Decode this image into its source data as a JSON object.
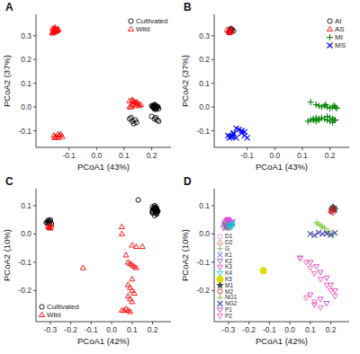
{
  "chart_data": [
    {
      "type": "scatter",
      "title": "A",
      "xlabel": "PCoA1 (43%)",
      "ylabel": "PCoA2 (37%)",
      "xlim": [
        -0.22,
        0.27
      ],
      "ylim": [
        -0.17,
        0.39
      ],
      "xticks": [
        -0.1,
        {
          "value": 0.0,
          "label": "0.0"
        },
        0.1,
        0.2
      ],
      "yticks": [
        -0.1,
        {
          "value": 0.0,
          "label": "0.0"
        },
        0.1,
        0.2,
        0.3
      ],
      "grid": false,
      "legend": "upper right",
      "series": [
        {
          "name": "Cultivated",
          "color": "black",
          "marker": "circle-open",
          "x": [
            0.2,
            0.21,
            0.215,
            0.205,
            0.21,
            0.22,
            0.208,
            0.215,
            0.212,
            0.218,
            0.205,
            0.21,
            0.203,
            0.207,
            0.213,
            0.218,
            0.222,
            0.225,
            0.2,
            0.21,
            0.215,
            0.22,
            0.225,
            0.13,
            0.14,
            0.145,
            0.135,
            0.12,
            0.125
          ],
          "values": [
            0.005,
            0.01,
            -0.01,
            0.0,
            0.005,
            0.0,
            -0.005,
            0.0,
            0.008,
            -0.005,
            0.003,
            -0.008,
            0.002,
            -0.003,
            0.006,
            -0.002,
            0.001,
            -0.007,
            -0.04,
            -0.05,
            -0.045,
            -0.055,
            -0.06,
            -0.06,
            -0.055,
            -0.065,
            -0.07,
            -0.05,
            -0.045
          ]
        },
        {
          "name": "Wild",
          "color": "red",
          "marker": "triangle-up-open",
          "x": [
            -0.15,
            -0.155,
            -0.16,
            -0.14,
            -0.15,
            -0.16,
            -0.155,
            -0.145,
            -0.14,
            -0.15,
            -0.155,
            -0.16,
            -0.145,
            -0.15,
            -0.148,
            -0.152,
            -0.158,
            -0.142,
            -0.155,
            -0.14,
            -0.148,
            -0.152,
            -0.13,
            -0.135,
            -0.14,
            -0.125,
            0.13,
            0.14,
            0.135,
            0.15,
            0.12,
            0.13,
            0.145,
            0.155,
            0.16,
            0.15,
            0.14,
            0.125,
            0.12,
            0.13
          ],
          "values": [
            0.325,
            0.33,
            0.315,
            0.325,
            0.32,
            0.33,
            0.318,
            0.322,
            0.328,
            0.315,
            0.325,
            0.31,
            0.32,
            0.335,
            0.32,
            0.33,
            0.315,
            0.325,
            -0.12,
            -0.115,
            -0.125,
            -0.13,
            -0.115,
            -0.12,
            -0.13,
            -0.125,
            0.01,
            0.005,
            0.02,
            0.015,
            0.0,
            0.025,
            0.02,
            0.005,
            0.01,
            0.015,
            0.02,
            0.0,
            0.025,
            0.03
          ]
        }
      ]
    },
    {
      "type": "scatter",
      "title": "B",
      "xlabel": "PCoA1 (43%)",
      "ylabel": "PCoA2 (37%)",
      "xlim": [
        -0.22,
        0.27
      ],
      "ylim": [
        -0.17,
        0.39
      ],
      "xticks": [
        -0.1,
        {
          "value": 0.0,
          "label": "0.0"
        },
        0.1,
        0.2
      ],
      "yticks": [
        -0.1,
        {
          "value": 0.0,
          "label": "0.0"
        },
        0.1,
        0.2,
        0.3
      ],
      "grid": false,
      "legend": "upper right",
      "series": [
        {
          "name": "AI",
          "color": "black",
          "marker": "circle-open",
          "x": [
            -0.155,
            -0.16,
            -0.165,
            -0.15,
            -0.158,
            -0.162
          ],
          "values": [
            0.325,
            0.33,
            0.315,
            0.32,
            0.328,
            0.322
          ]
        },
        {
          "name": "AS",
          "color": "red",
          "marker": "triangle-up-open",
          "x": [
            -0.168,
            -0.158,
            -0.163,
            -0.173,
            -0.16,
            -0.165
          ],
          "values": [
            0.32,
            0.33,
            0.315,
            0.325,
            0.318,
            0.312
          ]
        },
        {
          "name": "MI",
          "color": "green",
          "marker": "plus",
          "x": [
            0.13,
            0.15,
            0.16,
            0.17,
            0.18,
            0.185,
            0.19,
            0.2,
            0.21,
            0.215,
            0.22,
            0.225,
            0.19,
            0.2,
            0.21,
            0.215,
            0.14,
            0.15,
            0.16,
            0.17,
            0.18,
            0.19,
            0.2,
            0.21,
            0.22,
            0.12,
            0.13,
            0.14,
            0.15,
            0.16
          ],
          "values": [
            0.02,
            0.01,
            0.005,
            0.0,
            0.005,
            0.01,
            0.0,
            -0.005,
            0.0,
            0.005,
            0.0,
            -0.005,
            -0.04,
            -0.045,
            -0.05,
            -0.055,
            -0.055,
            -0.06,
            -0.055,
            -0.045,
            -0.05,
            -0.055,
            -0.06,
            -0.065,
            -0.055,
            -0.06,
            -0.055,
            -0.05,
            -0.045,
            -0.05
          ]
        },
        {
          "name": "MS",
          "color": "blue",
          "marker": "x",
          "x": [
            -0.14,
            -0.13,
            -0.12,
            -0.11,
            -0.15,
            -0.155,
            -0.16,
            -0.165,
            -0.15,
            -0.14,
            -0.155,
            -0.17,
            -0.12,
            -0.11,
            -0.1
          ],
          "values": [
            -0.09,
            -0.095,
            -0.1,
            -0.105,
            -0.115,
            -0.12,
            -0.125,
            -0.13,
            -0.11,
            -0.13,
            -0.125,
            -0.12,
            -0.11,
            -0.12,
            -0.13
          ]
        }
      ]
    },
    {
      "type": "scatter",
      "title": "C",
      "xlabel": "PCoA1 (42%)",
      "ylabel": "PCoA2 (10%)",
      "xlim": [
        -0.37,
        0.29
      ],
      "ylim": [
        -0.31,
        0.16
      ],
      "xticks": [
        -0.3,
        -0.2,
        -0.1,
        {
          "value": 0.0,
          "label": "0.0"
        },
        0.1,
        0.2
      ],
      "yticks": [
        -0.2,
        -0.1,
        {
          "value": 0.0,
          "label": "0.0"
        },
        0.1
      ],
      "grid": false,
      "legend": "lower left",
      "series": [
        {
          "name": "Cultivated",
          "color": "black",
          "marker": "circle-open",
          "x": [
            -0.32,
            -0.31,
            -0.305,
            -0.315,
            -0.3,
            -0.31,
            -0.305,
            -0.295,
            -0.3,
            -0.31,
            0.2,
            0.21,
            0.215,
            0.22,
            0.205,
            0.215,
            0.22,
            0.2,
            0.21,
            0.215,
            0.225,
            0.2,
            0.13,
            0.22,
            0.215,
            0.21,
            0.2,
            0.21,
            0.215,
            0.22,
            0.225,
            0.21,
            0.2,
            0.215,
            0.22
          ],
          "values": [
            0.04,
            0.045,
            0.035,
            0.04,
            0.05,
            0.038,
            0.042,
            0.036,
            0.044,
            0.048,
            0.08,
            0.085,
            0.09,
            0.085,
            0.09,
            0.095,
            0.08,
            0.085,
            0.09,
            0.095,
            0.08,
            0.075,
            0.12,
            0.09,
            0.085,
            0.1,
            0.095,
            0.085,
            0.075,
            0.07,
            0.08,
            0.065,
            0.075,
            0.08,
            0.075
          ]
        },
        {
          "name": "Wild",
          "color": "red",
          "marker": "triangle-up-open",
          "x": [
            -0.305,
            -0.295,
            -0.3,
            -0.31,
            -0.305,
            -0.14,
            0.05,
            0.1,
            0.12,
            0.08,
            0.09,
            0.1,
            0.11,
            0.12,
            0.08,
            0.09,
            0.1,
            0.11,
            0.08,
            0.09,
            0.1,
            0.05,
            0.06,
            0.07,
            0.08,
            0.09,
            0.1,
            0.15,
            0.05,
            0.07
          ],
          "values": [
            0.025,
            0.03,
            0.02,
            0.028,
            0.022,
            -0.12,
            0.025,
            -0.04,
            -0.045,
            -0.1,
            -0.105,
            -0.11,
            -0.115,
            -0.12,
            -0.18,
            -0.19,
            -0.2,
            -0.21,
            -0.22,
            -0.23,
            -0.24,
            -0.27,
            -0.27,
            -0.265,
            -0.27,
            -0.275,
            -0.16,
            -0.045,
            0.0,
            -0.075
          ]
        }
      ]
    },
    {
      "type": "scatter",
      "title": "D",
      "xlabel": "PCoA1 (42%)",
      "ylabel": "PCoA2 (10%)",
      "xlim": [
        -0.37,
        0.29
      ],
      "ylim": [
        -0.31,
        0.16
      ],
      "xticks": [
        -0.3,
        -0.2,
        -0.1,
        {
          "value": 0.0,
          "label": "0.0"
        },
        0.1,
        0.2
      ],
      "yticks": [
        -0.2,
        -0.1,
        {
          "value": 0.0,
          "label": "0.0"
        },
        0.1
      ],
      "grid": false,
      "legend": "lower left",
      "series": [
        {
          "name": "D1",
          "color": "#D4A0D4",
          "marker": "circle-open",
          "x": [
            -0.32,
            -0.31,
            -0.315,
            -0.32,
            -0.31
          ],
          "values": [
            0.04,
            0.045,
            0.035,
            0.042,
            0.038
          ]
        },
        {
          "name": "D2",
          "color": "#E08060",
          "marker": "triangle-up-open",
          "x": [
            -0.305,
            -0.295,
            -0.3,
            -0.31,
            -0.31
          ],
          "values": [
            0.025,
            0.03,
            0.02,
            0.028,
            0.022
          ]
        },
        {
          "name": "G",
          "color": "#80C080",
          "marker": "plus",
          "x": [
            -0.305,
            -0.295,
            -0.3,
            -0.315,
            -0.31,
            -0.305,
            -0.295,
            -0.305,
            -0.315
          ],
          "values": [
            0.038,
            0.042,
            0.036,
            0.044,
            0.04,
            0.048,
            0.04,
            0.035,
            0.04
          ]
        },
        {
          "name": "K1",
          "color": "#8080FF",
          "marker": "x",
          "x": [
            -0.29,
            -0.28,
            -0.295,
            -0.285,
            -0.28
          ],
          "values": [
            0.04,
            0.038,
            0.042,
            0.036,
            0.044
          ]
        },
        {
          "name": "K2",
          "color": "#9B59B6",
          "marker": "triangle-down-open",
          "x": [
            -0.32,
            -0.31,
            -0.305,
            -0.315,
            -0.325
          ],
          "values": [
            0.03,
            0.025,
            0.028,
            0.032,
            0.022
          ]
        },
        {
          "name": "K3",
          "color": "#E040E0",
          "marker": "triangle-down-open",
          "x": [
            -0.305,
            -0.315,
            -0.295,
            -0.3,
            -0.31
          ],
          "values": [
            0.05,
            0.04,
            0.045,
            0.052,
            0.048
          ]
        },
        {
          "name": "K4",
          "color": "#00CCCC",
          "marker": "triangle-down-open",
          "x": [
            -0.295,
            -0.285,
            -0.29,
            -0.3,
            -0.285
          ],
          "values": [
            0.03,
            0.025,
            0.028,
            0.022,
            0.032
          ]
        },
        {
          "name": "K5",
          "color": "#DDDD00",
          "marker": "circle",
          "x": [
            -0.13
          ],
          "values": [
            -0.13
          ]
        },
        {
          "name": "M1",
          "color": "#404040",
          "marker": "star",
          "x": [
            0.215,
            0.22,
            0.21,
            0.205,
            0.215
          ],
          "values": [
            0.09,
            0.085,
            0.095,
            0.088,
            0.092
          ]
        },
        {
          "name": "M2",
          "color": "#CC2222",
          "marker": "circle-open",
          "x": [
            0.2,
            0.21,
            0.215,
            0.205,
            0.21
          ],
          "values": [
            0.08,
            0.085,
            0.09,
            0.08,
            0.075
          ]
        },
        {
          "name": "NG1",
          "color": "#88CC44",
          "marker": "plus",
          "x": [
            0.13,
            0.14,
            0.15,
            0.16,
            0.17,
            0.18,
            0.19,
            0.2,
            0.21
          ],
          "values": [
            0.04,
            0.035,
            0.03,
            0.025,
            0.02,
            0.005,
            0.01,
            0.0,
            -0.005
          ]
        },
        {
          "name": "NG2",
          "color": "#4444BB",
          "marker": "x",
          "x": [
            0.1,
            0.12,
            0.14,
            0.16,
            0.18,
            0.2,
            0.22
          ],
          "values": [
            0.0,
            -0.005,
            0.005,
            0.0,
            0.002,
            -0.003,
            0.004
          ]
        },
        {
          "name": "P1",
          "color": "#CC44CC",
          "marker": "triangle-down-open",
          "x": [
            0.05,
            0.1,
            0.13,
            0.15,
            0.18,
            0.2,
            0.22,
            0.1,
            0.15,
            0.18,
            0.12
          ],
          "values": [
            -0.085,
            -0.1,
            -0.115,
            -0.135,
            -0.155,
            -0.18,
            -0.2,
            -0.215,
            -0.23,
            -0.245,
            -0.25
          ]
        },
        {
          "name": "P2",
          "color": "#FF55AA",
          "marker": "triangle-down-open",
          "x": [
            0.05,
            0.08,
            0.1,
            0.12,
            0.15,
            0.18,
            0.2,
            0.22,
            0.08,
            0.12,
            0.15
          ],
          "values": [
            -0.085,
            -0.1,
            -0.12,
            -0.14,
            -0.16,
            -0.18,
            -0.2,
            -0.22,
            -0.225,
            -0.24,
            -0.26
          ]
        }
      ]
    }
  ]
}
